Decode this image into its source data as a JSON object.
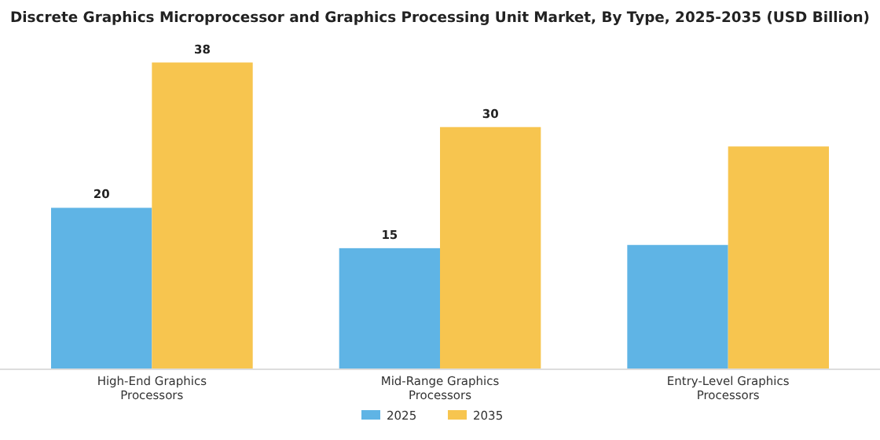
{
  "chart_data": {
    "type": "bar",
    "title": "Discrete Graphics Microprocessor and Graphics Processing Unit Market, By Type, 2025-2035 (USD Billion)",
    "categories": [
      "High-End Graphics Processors",
      "Mid-Range Graphics Processors",
      "Entry-Level Graphics Processors"
    ],
    "series": [
      {
        "name": "2025",
        "color": "#5fb4e5",
        "values": [
          20,
          15,
          15.4
        ],
        "value_labels": [
          "20",
          "15",
          null
        ]
      },
      {
        "name": "2035",
        "color": "#f7c54f",
        "values": [
          38,
          30,
          27.6
        ],
        "value_labels": [
          "38",
          "30",
          null
        ]
      }
    ],
    "legend": "bottom"
  }
}
